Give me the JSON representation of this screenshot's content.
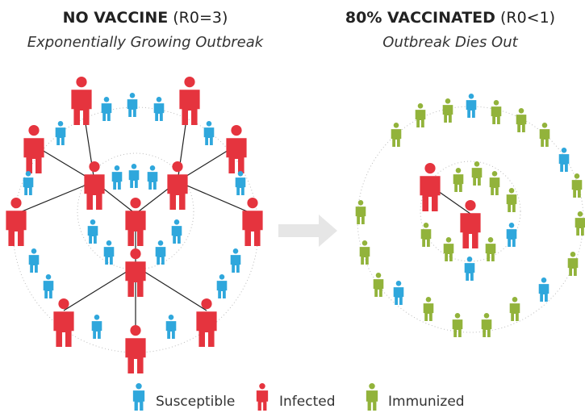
{
  "left": {
    "title": "NO VACCINE",
    "note": "(R0=3)",
    "subtitle": "Exponentially Growing Outbreak"
  },
  "right": {
    "title": "80% VACCINATED",
    "note": "(R0<1)",
    "subtitle": "Outbreak Dies Out"
  },
  "legend": [
    "Susceptible",
    "Infected",
    "Immunized"
  ]
}
